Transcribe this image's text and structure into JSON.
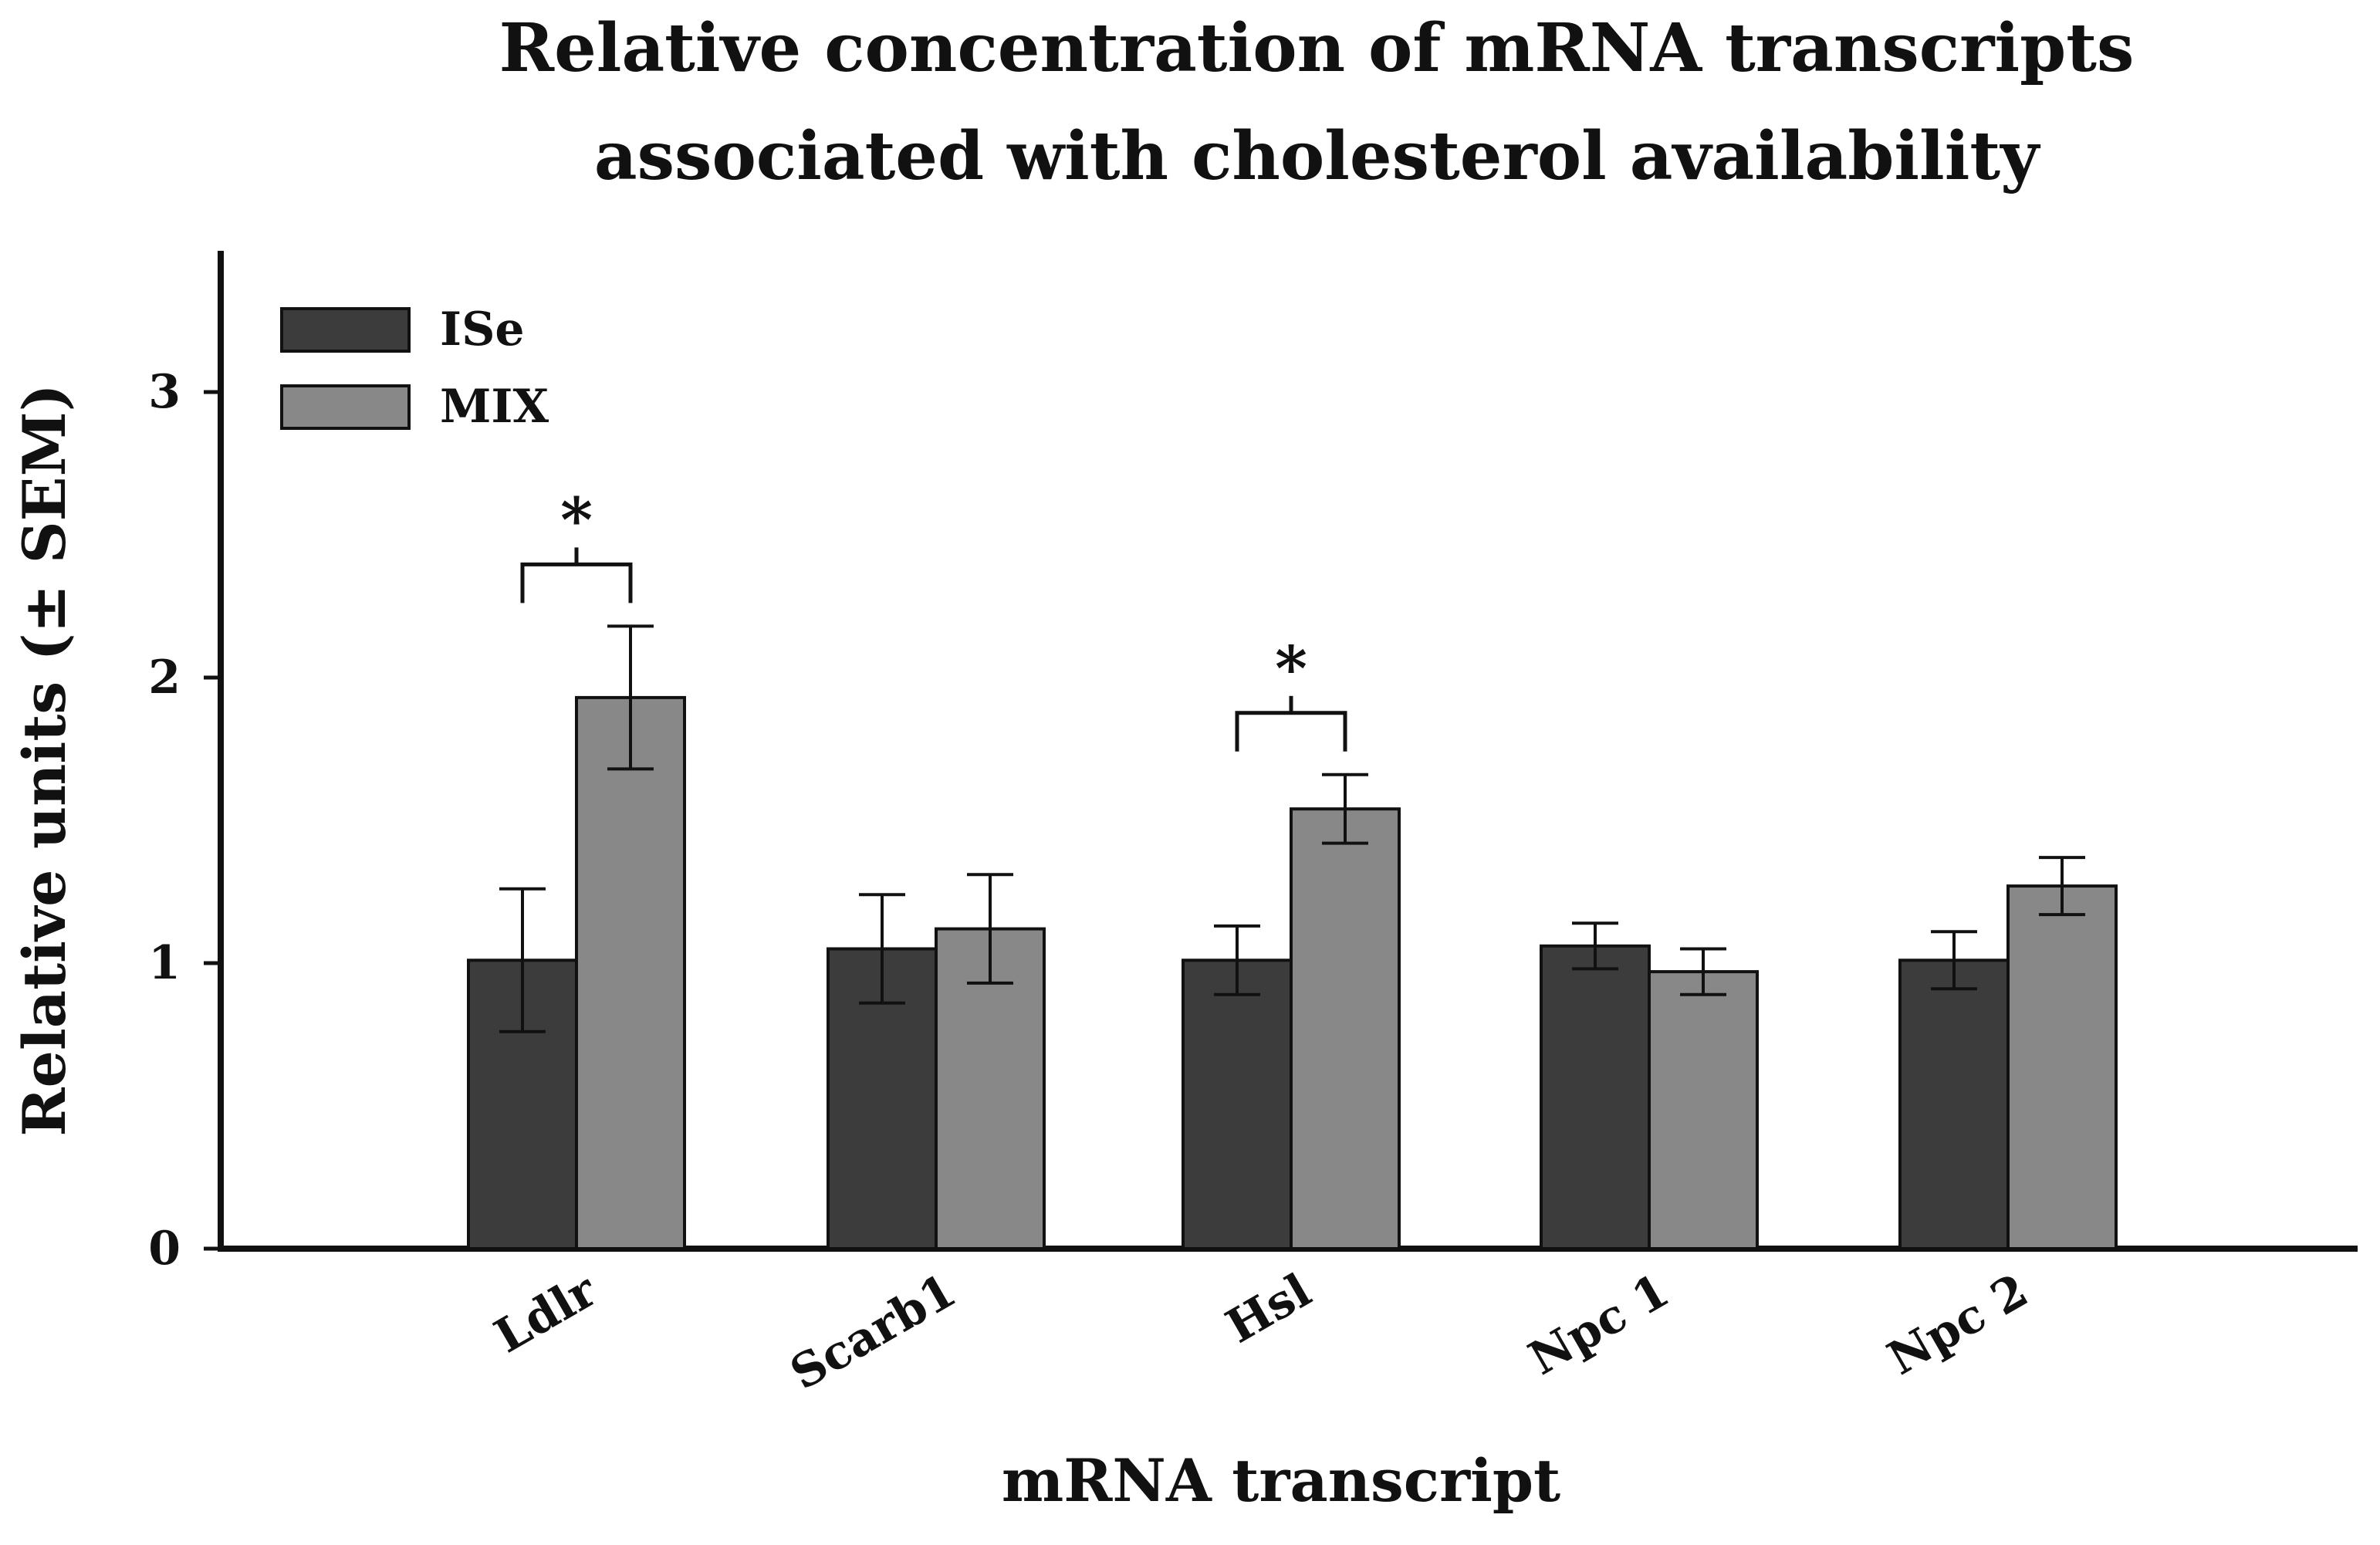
{
  "chart_data": {
    "type": "bar",
    "title_lines": [
      "Relative concentration of mRNA transcripts",
      "associated with cholesterol availability"
    ],
    "xlabel": "mRNA transcript",
    "ylabel": "Relative units (± SEM)",
    "categories": [
      "Ldlr",
      "Scarb1",
      "Hsl",
      "Npc 1",
      "Npc 2"
    ],
    "ylim": [
      0,
      3.5
    ],
    "yticks": [
      0,
      1,
      2,
      3
    ],
    "legend_position": "top-left",
    "series": [
      {
        "name": "ISe",
        "color": "#3c3c3c",
        "values": [
          1.01,
          1.05,
          1.01,
          1.06,
          1.01
        ],
        "errors": [
          0.25,
          0.19,
          0.12,
          0.08,
          0.1
        ]
      },
      {
        "name": "MIX",
        "color": "#888888",
        "values": [
          1.93,
          1.12,
          1.54,
          0.97,
          1.27
        ],
        "errors": [
          0.25,
          0.19,
          0.12,
          0.08,
          0.1
        ]
      }
    ],
    "significance": [
      {
        "category": "Ldlr",
        "label": "*"
      },
      {
        "category": "Hsl",
        "label": "*"
      }
    ]
  }
}
